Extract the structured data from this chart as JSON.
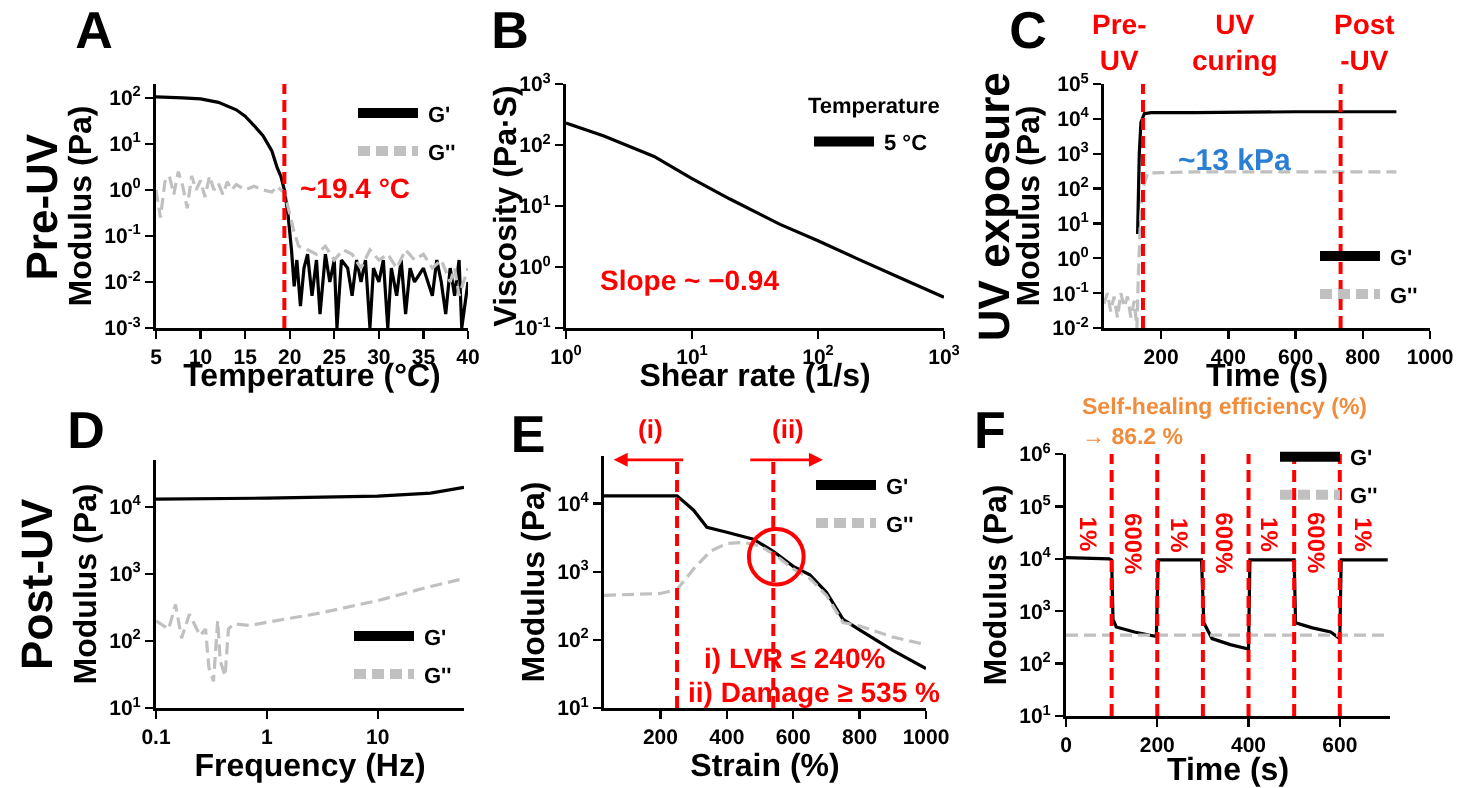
{
  "chart_data": [
    {
      "type": "line",
      "title": "A",
      "xlabel": "Temperature (°C)",
      "ylabel": "Modulus (Pa)",
      "log": true,
      "legend": "top right",
      "grid": false,
      "xlim": [
        5,
        40
      ],
      "xticks": [
        5,
        10,
        15,
        20,
        25,
        30,
        35,
        40
      ],
      "ylim": [
        0.001,
        200
      ],
      "yticks": [
        {
          "value": 0.001,
          "label": "10$^{-3}$"
        },
        {
          "value": 0.01,
          "label": "10$^{-2}$"
        },
        {
          "value": 0.1,
          "label": "10$^{-1}$"
        },
        {
          "value": 1,
          "label": "10$^{0}$"
        },
        {
          "value": 10,
          "label": "10$^{1}$"
        },
        {
          "value": 100,
          "label": "10$^{2}$"
        }
      ],
      "annotations": [
        "Pre-UV"
      ],
      "ref_lines": [
        {
          "axis": "x",
          "value": 19.4,
          "label": "~19.4 °C",
          "color": "#ff0000",
          "line_style": "dashed"
        }
      ],
      "series": [
        {
          "name": "G'",
          "color": "#000000",
          "line_style": "solid",
          "x": [
            5,
            8,
            10,
            12,
            14,
            15,
            16,
            17,
            18,
            18.6,
            19,
            19.4,
            19.8,
            20.2,
            20.5,
            20.8,
            21.2,
            21.6,
            22,
            22.5,
            23,
            23.4,
            24,
            24.5,
            25,
            25.3,
            25.8,
            26.5,
            27,
            27.5,
            28,
            28.5,
            29,
            29.4,
            30,
            30.5,
            31,
            31.4,
            32,
            32.5,
            33,
            33.5,
            34,
            35,
            36,
            36.5,
            37,
            37.5,
            38,
            38.5,
            39,
            39.3,
            40
          ],
          "values": [
            105,
            100,
            95,
            80,
            55,
            40,
            25,
            15,
            7,
            3,
            2,
            1,
            0.3,
            0.05,
            0.008,
            0.03,
            0.003,
            0.02,
            0.04,
            0.005,
            0.03,
            0.002,
            0.04,
            0.01,
            0.03,
            0.001,
            0.03,
            0.02,
            0.005,
            0.03,
            0.01,
            0.03,
            0.001,
            0.02,
            0.01,
            0.03,
            0.001,
            0.02,
            0.005,
            0.03,
            0.002,
            0.02,
            0.01,
            0.02,
            0.005,
            0.03,
            0.01,
            0.002,
            0.02,
            0.005,
            0.03,
            0.001,
            0.01
          ]
        },
        {
          "name": "G''",
          "color": "#c0c0c0",
          "line_style": "dashed",
          "x": [
            5,
            5.5,
            6,
            6.5,
            7,
            7.5,
            8,
            8.5,
            9,
            9.5,
            10,
            10.5,
            11,
            11.5,
            12,
            12.5,
            13,
            13.5,
            14,
            15,
            16,
            17,
            18,
            18.6,
            19,
            19.4,
            20,
            20.5,
            21,
            22,
            23,
            24,
            25,
            26,
            27,
            28,
            29,
            30,
            31,
            32,
            33,
            34,
            35,
            36,
            37,
            38,
            38.5,
            39,
            40
          ],
          "values": [
            1,
            0.25,
            1.5,
            2,
            0.8,
            2.5,
            1.2,
            0.4,
            2,
            1,
            1.6,
            0.7,
            2,
            1,
            1.4,
            0.8,
            1.5,
            1,
            1.3,
            1,
            1.2,
            1,
            0.9,
            1.2,
            1,
            0.9,
            0.3,
            0.12,
            0.06,
            0.05,
            0.04,
            0.06,
            0.03,
            0.05,
            0.04,
            0.02,
            0.05,
            0.03,
            0.04,
            0.02,
            0.05,
            0.03,
            0.04,
            0.02,
            0.03,
            0.01,
            0.02,
            0.005,
            0.02
          ]
        }
      ]
    },
    {
      "type": "line",
      "title": "B",
      "xlabel": "Shear rate (1/s)",
      "ylabel": "Viscosity (Pa·S)",
      "log": "xy",
      "legend": "top right",
      "legend_title": "Temperature",
      "grid": false,
      "xlim": [
        1,
        1000
      ],
      "xticks": [
        {
          "value": 1,
          "label": "10$^{0}$"
        },
        {
          "value": 10,
          "label": "10$^{1}$"
        },
        {
          "value": 100,
          "label": "10$^{2}$"
        },
        {
          "value": 1000,
          "label": "10$^{3}$"
        }
      ],
      "ylim": [
        0.1,
        1000
      ],
      "yticks": [
        {
          "value": 0.1,
          "label": "10$^{-1}$"
        },
        {
          "value": 1,
          "label": "10$^{0}$"
        },
        {
          "value": 10,
          "label": "10$^{1}$"
        },
        {
          "value": 100,
          "label": "10$^{2}$"
        },
        {
          "value": 1000,
          "label": "10$^{3}$"
        }
      ],
      "annotations": [
        "Slope ~ −0.94"
      ],
      "series": [
        {
          "name": "5 °C",
          "color": "#000000",
          "line_style": "solid",
          "x": [
            1,
            2,
            5,
            10,
            20,
            50,
            100,
            200,
            500,
            1000
          ],
          "values": [
            230,
            140,
            65,
            28,
            13,
            5,
            2.7,
            1.4,
            0.6,
            0.32
          ]
        }
      ]
    },
    {
      "type": "line",
      "xlabel": "Time (s)",
      "ylabel": "Modulus (Pa)",
      "title": "C",
      "log": true,
      "legend": "bottom right",
      "grid": false,
      "xlim": [
        30,
        1000
      ],
      "xticks": [
        200,
        400,
        600,
        800,
        1000
      ],
      "ylim": [
        0.01,
        100000
      ],
      "yticks": [
        {
          "value": 0.01,
          "label": "10$^{-2}$"
        },
        {
          "value": 0.1,
          "label": "10$^{-1}$"
        },
        {
          "value": 1,
          "label": "10$^{0}$"
        },
        {
          "value": 10,
          "label": "10$^{1}$"
        },
        {
          "value": 100,
          "label": "10$^{2}$"
        },
        {
          "value": 1000,
          "label": "10$^{3}$"
        },
        {
          "value": 10000,
          "label": "10$^{4}$"
        },
        {
          "value": 100000,
          "label": "10$^{5}$"
        }
      ],
      "annotations": [
        "UV exposure",
        "Pre-\nUV",
        "UV\ncuring",
        "Post\n-UV",
        {
          "text": "~13 kPa",
          "x": 420,
          "y": 15000
        }
      ],
      "ref_lines": [
        {
          "axis": "x",
          "value": 146,
          "color": "#ff0000",
          "line_style": "dashed"
        },
        {
          "axis": "x",
          "value": 734,
          "color": "#ff0000",
          "line_style": "dashed"
        }
      ],
      "series": [
        {
          "name": "G'",
          "color": "#000000",
          "line_style": "solid",
          "x": [
            130,
            135,
            140,
            150,
            170,
            300,
            600,
            900
          ],
          "values": [
            5,
            1000,
            8000,
            14000,
            15000,
            15000,
            16000,
            16000
          ]
        },
        {
          "name": "G''",
          "color": "#c0c0c0",
          "line_style": "dashed",
          "x": [
            30,
            40,
            50,
            60,
            70,
            80,
            90,
            100,
            110,
            120,
            128,
            132,
            138,
            145,
            160,
            300,
            900
          ],
          "values": [
            0.05,
            0.1,
            0.03,
            0.08,
            0.02,
            0.1,
            0.04,
            0.08,
            0.02,
            0.06,
            0.01,
            0.3,
            10,
            100,
            280,
            300,
            300
          ]
        }
      ]
    },
    {
      "type": "line",
      "title": "D",
      "xlabel": "Frequency (Hz)",
      "ylabel": "Modulus (Pa)",
      "log": "xy",
      "legend": "bottom right",
      "grid": false,
      "xlim": [
        0.1,
        60
      ],
      "xticks": [
        0.1,
        1,
        10
      ],
      "ylim": [
        10,
        50000
      ],
      "yticks": [
        {
          "value": 10,
          "label": "10$^{1}$"
        },
        {
          "value": 100,
          "label": "10$^{2}$"
        },
        {
          "value": 1000,
          "label": "10$^{3}$"
        },
        {
          "value": 10000,
          "label": "10$^{4}$"
        }
      ],
      "annotations": [
        "Post-UV"
      ],
      "series": [
        {
          "name": "G'",
          "color": "#000000",
          "line_style": "solid",
          "x": [
            0.1,
            1,
            10,
            30,
            60
          ],
          "values": [
            13000,
            13500,
            14500,
            16000,
            19500
          ]
        },
        {
          "name": "G''",
          "color": "#c0c0c0",
          "line_style": "dashed",
          "x": [
            0.1,
            0.13,
            0.15,
            0.17,
            0.2,
            0.25,
            0.28,
            0.3,
            0.33,
            0.36,
            0.38,
            0.42,
            0.45,
            0.5,
            0.7,
            1,
            3,
            10,
            30,
            60
          ],
          "values": [
            200,
            150,
            350,
            110,
            250,
            120,
            150,
            40,
            25,
            200,
            50,
            30,
            150,
            180,
            170,
            190,
            260,
            400,
            650,
            850
          ]
        }
      ]
    },
    {
      "type": "line",
      "title": "E",
      "xlabel": "Strain (%)",
      "ylabel": "Modulus (Pa)",
      "log": true,
      "legend": "top right",
      "grid": false,
      "xlim": [
        30,
        1000
      ],
      "xticks": [
        200,
        400,
        600,
        800,
        1000
      ],
      "ylim": [
        10,
        50000
      ],
      "yticks": [
        {
          "value": 10,
          "label": "10$^{1}$"
        },
        {
          "value": 100,
          "label": "10$^{2}$"
        },
        {
          "value": 1000,
          "label": "10$^{3}$"
        },
        {
          "value": 10000,
          "label": "10$^{4}$"
        }
      ],
      "annotations": [
        "(i)",
        "(ii)",
        "i) LVR ≤ 240%",
        "ii) Damage ≥ 535 %"
      ],
      "ref_lines": [
        {
          "axis": "x",
          "value": 250,
          "color": "#ff0000",
          "line_style": "dashed"
        },
        {
          "axis": "x",
          "value": 540,
          "color": "#ff0000",
          "line_style": "dashed"
        }
      ],
      "series": [
        {
          "name": "G'",
          "color": "#000000",
          "line_style": "solid",
          "x": [
            30,
            250,
            300,
            340,
            400,
            480,
            540,
            600,
            650,
            700,
            750,
            800,
            900,
            1000
          ],
          "values": [
            13000,
            13000,
            8000,
            4500,
            3800,
            3000,
            2000,
            1200,
            900,
            500,
            200,
            140,
            70,
            38
          ]
        },
        {
          "name": "G''",
          "color": "#c0c0c0",
          "line_style": "dashed",
          "x": [
            30,
            200,
            250,
            300,
            350,
            400,
            450,
            500,
            550,
            600,
            650,
            700,
            750,
            800,
            900,
            1000
          ],
          "values": [
            450,
            480,
            550,
            1100,
            2000,
            2600,
            2700,
            2400,
            1700,
            1100,
            800,
            450,
            180,
            160,
            110,
            85
          ]
        }
      ]
    },
    {
      "type": "line",
      "title": "F",
      "xlabel": "Time (s)",
      "ylabel": "Modulus (Pa)",
      "log": true,
      "legend": "top right",
      "grid": false,
      "xlim": [
        0,
        710
      ],
      "xticks": [
        0,
        200,
        400,
        600
      ],
      "ylim": [
        10,
        1000000
      ],
      "yticks": [
        {
          "value": 10,
          "label": "10$^{1}$"
        },
        {
          "value": 100,
          "label": "10$^{2}$"
        },
        {
          "value": 1000,
          "label": "10$^{3}$"
        },
        {
          "value": 10000,
          "label": "10$^{4}$"
        },
        {
          "value": 100000,
          "label": "10$^{5}$"
        },
        {
          "value": 1000000,
          "label": "10$^{6}$"
        }
      ],
      "annotations": [
        "Self-healing efficiency (%)\n→ 86.2 %",
        "1%",
        "600%",
        "1%",
        "600%",
        "1%",
        "600%",
        "1%"
      ],
      "ref_lines": [
        {
          "axis": "x",
          "value": 100,
          "color": "#ff0000",
          "line_style": "dashed"
        },
        {
          "axis": "x",
          "value": 200,
          "color": "#ff0000",
          "line_style": "dashed"
        },
        {
          "axis": "x",
          "value": 300,
          "color": "#ff0000",
          "line_style": "dashed"
        },
        {
          "axis": "x",
          "value": 400,
          "color": "#ff0000",
          "line_style": "dashed"
        },
        {
          "axis": "x",
          "value": 500,
          "color": "#ff0000",
          "line_style": "dashed"
        },
        {
          "axis": "x",
          "value": 600,
          "color": "#ff0000",
          "line_style": "dashed"
        }
      ],
      "series": [
        {
          "name": "G'",
          "color": "#000000",
          "line_style": "solid",
          "x": [
            0,
            95,
            100,
            103,
            110,
            150,
            190,
            198,
            202,
            297,
            302,
            320,
            360,
            400,
            403,
            500,
            503,
            540,
            580,
            600,
            603,
            705
          ],
          "values": [
            10500,
            10000,
            9500,
            700,
            500,
            400,
            340,
            330,
            9500,
            9500,
            600,
            300,
            230,
            190,
            9500,
            9500,
            600,
            480,
            400,
            300,
            9500,
            9500
          ]
        },
        {
          "name": "G''",
          "color": "#c0c0c0",
          "line_style": "dashed",
          "x": [
            0,
            200,
            400,
            600,
            705
          ],
          "values": [
            350,
            350,
            350,
            350,
            350
          ]
        }
      ]
    }
  ]
}
